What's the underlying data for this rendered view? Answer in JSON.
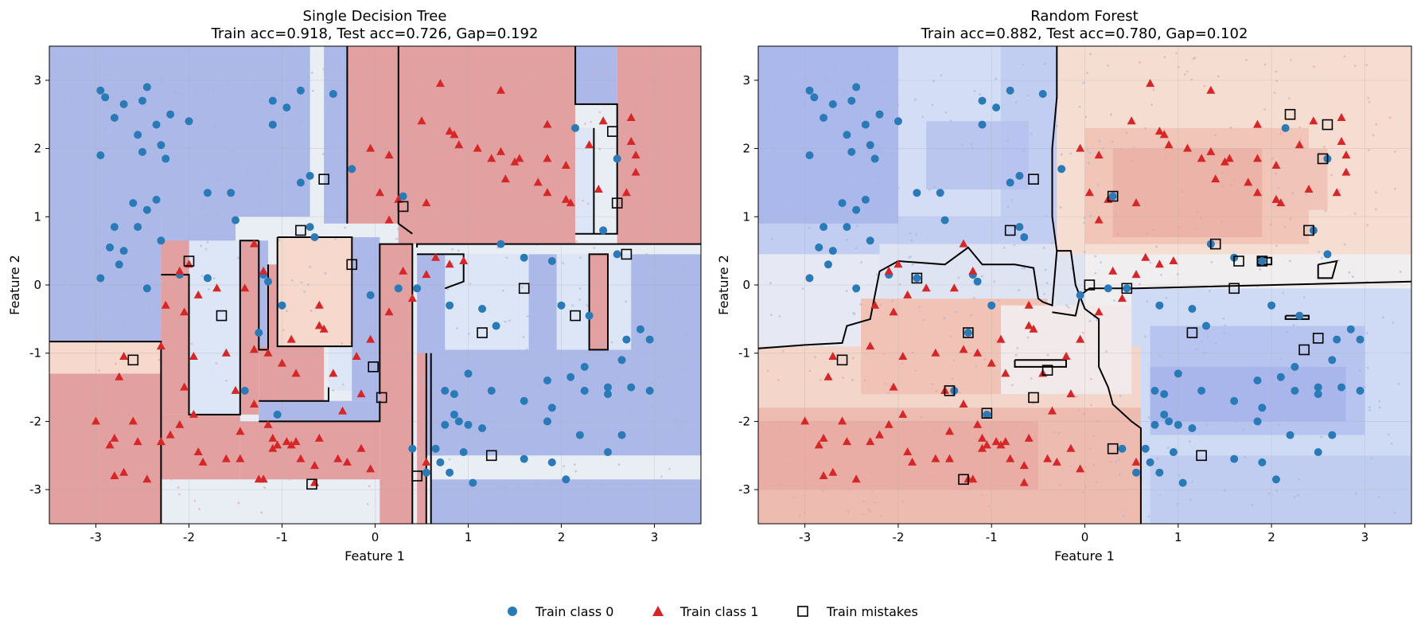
{
  "figure": {
    "legend": {
      "items": [
        {
          "label": "Train class 0",
          "marker": "circle",
          "color": "#2a7ab8"
        },
        {
          "label": "Train class 1",
          "marker": "triangle",
          "color": "#d62728"
        },
        {
          "label": "Train mistakes",
          "marker": "square",
          "color": "#000000"
        }
      ],
      "placement": "bottom-center"
    }
  },
  "colors": {
    "class0": "#2a7ab8",
    "class1": "#d62728",
    "blue_region": "#abb8e8",
    "red_region": "#e2a0a0",
    "pale_blue_region": "#dce6f6",
    "pale_red_region": "#f6d8cc",
    "neutral_region": "#e9edf4",
    "boundary": "#000000"
  },
  "chart_data": [
    {
      "type": "scatter",
      "title": "Single Decision Tree",
      "subtitle": "Train acc=0.918, Test acc=0.726, Gap=0.192",
      "xlabel": "Feature 1",
      "ylabel": "Feature 2",
      "xlim": [
        -3.5,
        3.5
      ],
      "ylim": [
        -3.5,
        3.5
      ],
      "x_ticks": [
        -3,
        -2,
        -1,
        0,
        1,
        2,
        3
      ],
      "y_ticks": [
        -3,
        -2,
        -1,
        0,
        1,
        2,
        3
      ],
      "grid": true,
      "background": "decision regions (tree)",
      "series": [
        {
          "name": "Train class 0",
          "marker": "circle",
          "points": [
            [
              -2.95,
              2.85
            ],
            [
              -2.9,
              2.75
            ],
            [
              -2.7,
              2.65
            ],
            [
              -2.45,
              2.9
            ],
            [
              -2.5,
              2.7
            ],
            [
              -2.2,
              2.5
            ],
            [
              -2.8,
              2.45
            ],
            [
              -2.35,
              2.35
            ],
            [
              -2.55,
              2.2
            ],
            [
              -2.3,
              2.05
            ],
            [
              -2.5,
              1.95
            ],
            [
              -2.0,
              2.4
            ],
            [
              -2.95,
              1.9
            ],
            [
              -2.25,
              1.85
            ],
            [
              -1.8,
              1.35
            ],
            [
              -1.55,
              1.35
            ],
            [
              -1.1,
              2.7
            ],
            [
              -0.95,
              2.6
            ],
            [
              -0.8,
              2.85
            ],
            [
              -0.45,
              2.8
            ],
            [
              -1.1,
              2.35
            ],
            [
              -0.7,
              1.6
            ],
            [
              -0.8,
              1.5
            ],
            [
              -0.25,
              1.7
            ],
            [
              -2.6,
              1.2
            ],
            [
              -2.45,
              1.1
            ],
            [
              -2.35,
              1.25
            ],
            [
              -2.8,
              0.85
            ],
            [
              -2.55,
              0.85
            ],
            [
              -2.3,
              0.65
            ],
            [
              -1.5,
              0.95
            ],
            [
              -2.85,
              0.55
            ],
            [
              -2.7,
              0.5
            ],
            [
              -2.95,
              0.1
            ],
            [
              -2.45,
              -0.05
            ],
            [
              -2.1,
              0.15
            ],
            [
              -1.8,
              0.1
            ],
            [
              -2.75,
              0.3
            ],
            [
              -1.2,
              0.15
            ],
            [
              -1.15,
              0.05
            ],
            [
              -1.0,
              -0.3
            ],
            [
              -0.7,
              0.85
            ],
            [
              -0.65,
              0.7
            ],
            [
              -1.25,
              -0.7
            ],
            [
              -1.4,
              -1.55
            ],
            [
              -1.05,
              -1.9
            ],
            [
              -0.05,
              -0.15
            ],
            [
              0.25,
              -0.05
            ],
            [
              0.3,
              1.3
            ],
            [
              0.8,
              -0.3
            ],
            [
              1.15,
              -0.35
            ],
            [
              1.3,
              -0.6
            ],
            [
              1.35,
              0.6
            ],
            [
              1.6,
              0.4
            ],
            [
              1.9,
              0.35
            ],
            [
              0.45,
              -0.05
            ],
            [
              1.0,
              -1.3
            ],
            [
              0.85,
              -1.6
            ],
            [
              0.75,
              -1.55
            ],
            [
              1.25,
              -1.55
            ],
            [
              1.6,
              -1.7
            ],
            [
              1.85,
              -1.4
            ],
            [
              1.9,
              -1.8
            ],
            [
              2.1,
              -1.35
            ],
            [
              2.25,
              -1.2
            ],
            [
              2.25,
              -1.55
            ],
            [
              2.5,
              -1.5
            ],
            [
              2.5,
              -1.6
            ],
            [
              2.75,
              -1.5
            ],
            [
              2.95,
              -1.55
            ],
            [
              2.95,
              -0.8
            ],
            [
              2.7,
              -0.8
            ],
            [
              2.85,
              -0.65
            ],
            [
              2.65,
              -1.1
            ],
            [
              2.0,
              -0.3
            ],
            [
              2.3,
              -0.45
            ],
            [
              2.6,
              0.45
            ],
            [
              0.85,
              -1.9
            ],
            [
              0.75,
              -2.05
            ],
            [
              0.9,
              -2.0
            ],
            [
              1.0,
              -2.05
            ],
            [
              1.15,
              -2.1
            ],
            [
              1.85,
              -2.0
            ],
            [
              2.2,
              -2.2
            ],
            [
              2.5,
              -2.45
            ],
            [
              2.65,
              -2.2
            ],
            [
              1.9,
              -2.6
            ],
            [
              2.05,
              -2.85
            ],
            [
              1.6,
              -2.55
            ],
            [
              0.65,
              -2.4
            ],
            [
              0.7,
              -2.6
            ],
            [
              0.8,
              -2.75
            ],
            [
              1.05,
              -2.9
            ],
            [
              0.4,
              -2.4
            ],
            [
              0.95,
              -2.45
            ],
            [
              0.55,
              -2.75
            ],
            [
              2.15,
              2.3
            ],
            [
              2.6,
              1.85
            ],
            [
              2.45,
              0.8
            ]
          ]
        },
        {
          "name": "Train class 1",
          "marker": "triangle",
          "points": [
            [
              0.7,
              2.95
            ],
            [
              1.35,
              2.85
            ],
            [
              0.5,
              2.4
            ],
            [
              0.8,
              2.25
            ],
            [
              0.85,
              2.2
            ],
            [
              0.9,
              2.05
            ],
            [
              1.1,
              2.0
            ],
            [
              1.25,
              1.85
            ],
            [
              1.35,
              1.95
            ],
            [
              1.4,
              1.55
            ],
            [
              1.5,
              1.8
            ],
            [
              1.55,
              1.85
            ],
            [
              1.85,
              1.85
            ],
            [
              2.05,
              1.75
            ],
            [
              1.85,
              2.35
            ],
            [
              2.3,
              2.05
            ],
            [
              2.4,
              1.4
            ],
            [
              2.05,
              1.25
            ],
            [
              2.1,
              1.2
            ],
            [
              1.75,
              1.5
            ],
            [
              1.85,
              1.35
            ],
            [
              2.45,
              2.4
            ],
            [
              2.75,
              2.45
            ],
            [
              2.75,
              2.1
            ],
            [
              2.8,
              1.9
            ],
            [
              2.8,
              1.65
            ],
            [
              2.7,
              1.35
            ],
            [
              0.15,
              1.9
            ],
            [
              -0.05,
              2.0
            ],
            [
              0.05,
              1.35
            ],
            [
              0.25,
              1.25
            ],
            [
              0.55,
              1.2
            ],
            [
              0.15,
              0.95
            ],
            [
              0.3,
              0.2
            ],
            [
              0.4,
              -0.2
            ],
            [
              0.55,
              0.15
            ],
            [
              0.65,
              0.4
            ],
            [
              0.8,
              0.3
            ],
            [
              0.95,
              0.35
            ],
            [
              -1.3,
              0.6
            ],
            [
              -1.2,
              0.2
            ],
            [
              -1.4,
              -0.05
            ],
            [
              -1.7,
              -0.05
            ],
            [
              -1.9,
              -0.15
            ],
            [
              -2.05,
              -0.4
            ],
            [
              -2.1,
              0.2
            ],
            [
              -2.0,
              0.3
            ],
            [
              -2.25,
              -0.3
            ],
            [
              -2.3,
              -0.9
            ],
            [
              -2.7,
              -1.05
            ],
            [
              -2.75,
              -1.35
            ],
            [
              -1.95,
              -1.05
            ],
            [
              -1.6,
              -1.0
            ],
            [
              -1.15,
              -1.0
            ],
            [
              -0.9,
              -0.8
            ],
            [
              -0.85,
              -1.3
            ],
            [
              -1.0,
              -1.15
            ],
            [
              -1.3,
              -0.95
            ],
            [
              -0.6,
              -0.3
            ],
            [
              -0.6,
              -0.6
            ],
            [
              -0.55,
              -0.65
            ],
            [
              -0.2,
              -1.05
            ],
            [
              -0.05,
              -0.8
            ],
            [
              0.15,
              -0.4
            ],
            [
              -0.45,
              -1.3
            ],
            [
              -0.15,
              -1.6
            ],
            [
              -2.05,
              -1.5
            ],
            [
              -1.95,
              -1.9
            ],
            [
              -1.5,
              -1.55
            ],
            [
              -1.3,
              -1.75
            ],
            [
              -1.15,
              -2.05
            ],
            [
              -1.1,
              -2.25
            ],
            [
              -1.05,
              -2.35
            ],
            [
              -0.95,
              -2.3
            ],
            [
              -0.9,
              -2.35
            ],
            [
              -0.85,
              -2.3
            ],
            [
              -0.6,
              -2.25
            ],
            [
              -0.35,
              -1.85
            ],
            [
              -0.15,
              -2.4
            ],
            [
              -0.4,
              -2.55
            ],
            [
              -0.65,
              -2.65
            ],
            [
              -0.8,
              -2.55
            ],
            [
              -1.1,
              -2.4
            ],
            [
              -1.25,
              -2.85
            ],
            [
              -1.45,
              -2.55
            ],
            [
              -1.6,
              -2.55
            ],
            [
              -1.85,
              -2.6
            ],
            [
              -2.2,
              -2.2
            ],
            [
              -2.3,
              -2.3
            ],
            [
              -2.55,
              -2.3
            ],
            [
              -2.8,
              -2.25
            ],
            [
              -2.85,
              -2.35
            ],
            [
              -2.8,
              -2.8
            ],
            [
              -2.7,
              -2.75
            ],
            [
              -2.45,
              -2.85
            ],
            [
              -3.0,
              -2.0
            ],
            [
              -2.6,
              -2.0
            ],
            [
              -2.1,
              -2.05
            ],
            [
              -1.9,
              -2.45
            ],
            [
              -1.45,
              -2.15
            ],
            [
              -0.3,
              -2.6
            ],
            [
              -1.2,
              -2.85
            ],
            [
              -0.65,
              -2.9
            ],
            [
              0.55,
              -2.6
            ],
            [
              -0.05,
              -2.7
            ]
          ]
        },
        {
          "name": "Train mistakes",
          "marker": "square",
          "points": [
            [
              -0.55,
              1.55
            ],
            [
              0.3,
              1.15
            ],
            [
              2.55,
              2.25
            ],
            [
              2.6,
              1.2
            ],
            [
              -0.8,
              0.8
            ],
            [
              -2.0,
              0.35
            ],
            [
              -0.25,
              0.3
            ],
            [
              2.7,
              0.45
            ],
            [
              -1.65,
              -0.45
            ],
            [
              -2.6,
              -1.1
            ],
            [
              -0.02,
              -1.2
            ],
            [
              0.07,
              -1.65
            ],
            [
              1.6,
              -0.05
            ],
            [
              2.15,
              -0.45
            ],
            [
              1.15,
              -0.7
            ],
            [
              1.25,
              -2.5
            ],
            [
              0.45,
              -2.8
            ],
            [
              -0.68,
              -2.92
            ]
          ]
        }
      ]
    },
    {
      "type": "scatter",
      "title": "Random Forest",
      "subtitle": "Train acc=0.882, Test acc=0.780, Gap=0.102",
      "xlabel": "Feature 1",
      "ylabel": "Feature 2",
      "xlim": [
        -3.5,
        3.5
      ],
      "ylim": [
        -3.5,
        3.5
      ],
      "x_ticks": [
        -3,
        -2,
        -1,
        0,
        1,
        2,
        3
      ],
      "y_ticks": [
        -3,
        -2,
        -1,
        0,
        1,
        2,
        3
      ],
      "grid": true,
      "background": "decision regions (forest probability)",
      "series": [
        {
          "name": "Train class 0",
          "marker": "circle",
          "same_points_as_left": true
        },
        {
          "name": "Train class 1",
          "marker": "triangle",
          "same_points_as_left": true
        },
        {
          "name": "Train mistakes",
          "marker": "square",
          "points": [
            [
              2.2,
              2.5
            ],
            [
              2.6,
              2.35
            ],
            [
              2.55,
              1.85
            ],
            [
              -0.55,
              1.55
            ],
            [
              0.3,
              1.3
            ],
            [
              -0.8,
              0.8
            ],
            [
              2.4,
              0.8
            ],
            [
              1.4,
              0.6
            ],
            [
              1.65,
              0.35
            ],
            [
              1.9,
              0.35
            ],
            [
              -1.8,
              0.1
            ],
            [
              0.05,
              0.0
            ],
            [
              0.45,
              -0.05
            ],
            [
              1.6,
              -0.05
            ],
            [
              -1.25,
              -0.7
            ],
            [
              1.15,
              -0.7
            ],
            [
              2.5,
              -0.78
            ],
            [
              2.35,
              -0.95
            ],
            [
              -2.6,
              -1.1
            ],
            [
              -0.4,
              -1.25
            ],
            [
              -1.45,
              -1.55
            ],
            [
              -0.55,
              -1.65
            ],
            [
              -1.05,
              -1.88
            ],
            [
              0.3,
              -2.4
            ],
            [
              1.25,
              -2.5
            ],
            [
              -1.3,
              -2.85
            ]
          ]
        }
      ]
    }
  ]
}
